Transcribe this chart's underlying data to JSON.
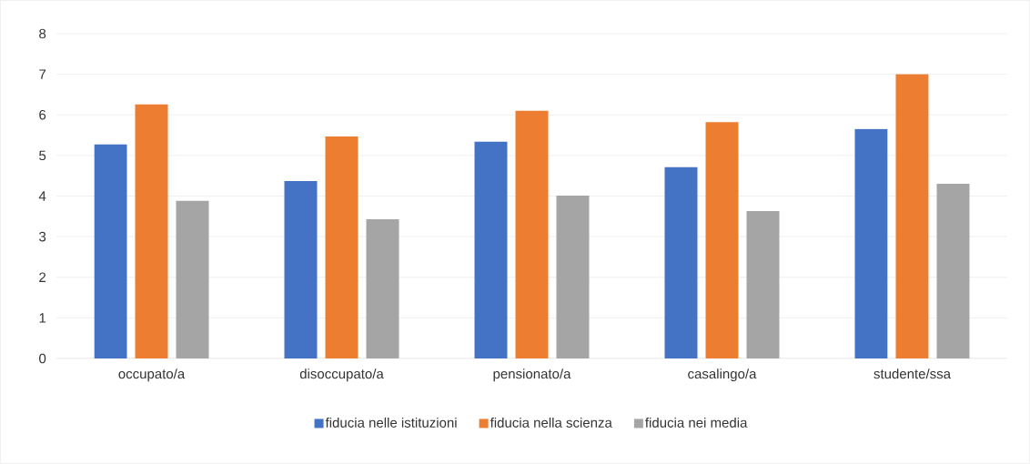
{
  "chart_data": {
    "type": "bar",
    "categories": [
      "occupato/a",
      "disoccupato/a",
      "pensionato/a",
      "casalingo/a",
      "studente/ssa"
    ],
    "series": [
      {
        "name": "fiducia nelle istituzioni",
        "color": "#4472c4",
        "values": [
          5.27,
          4.37,
          5.34,
          4.71,
          5.65
        ]
      },
      {
        "name": "fiducia nella scienza",
        "color": "#ed7d31",
        "values": [
          6.26,
          5.47,
          6.1,
          5.82,
          7.0
        ]
      },
      {
        "name": "fiducia nei media",
        "color": "#a5a5a5",
        "values": [
          3.88,
          3.43,
          4.01,
          3.63,
          4.3
        ]
      }
    ],
    "ylim": [
      0,
      8
    ],
    "yticks": [
      0,
      1,
      2,
      3,
      4,
      5,
      6,
      7,
      8
    ],
    "grid": "y",
    "legend": "bottom"
  }
}
